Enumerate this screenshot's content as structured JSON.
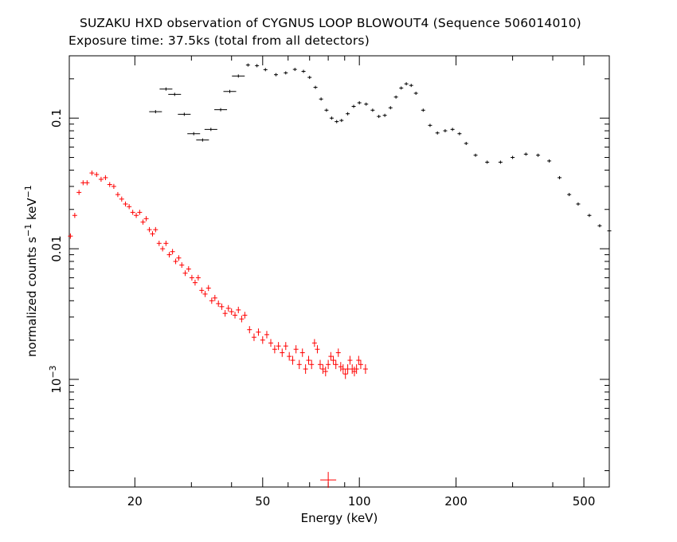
{
  "chart_data": {
    "type": "scatter",
    "title": "SUZAKU HXD observation of CYGNUS LOOP BLOWOUT4 (Sequence 506014010)",
    "subtitle": "Exposure time: 37.5ks (total from all detectors)",
    "xlabel": "Energy (keV)",
    "ylabel_main": "normalized counts s",
    "ylabel_sup1": "−1",
    "ylabel_mid": " keV",
    "ylabel_sup2": "−1",
    "x_scale": "log",
    "y_scale": "log",
    "xlim": [
      12.5,
      600
    ],
    "ylim": [
      0.00015,
      0.3
    ],
    "x_ticks": [
      {
        "value": 20,
        "label": "20"
      },
      {
        "value": 50,
        "label": "50"
      },
      {
        "value": 100,
        "label": "100"
      },
      {
        "value": 200,
        "label": "200"
      },
      {
        "value": 500,
        "label": "500"
      }
    ],
    "y_ticks": [
      {
        "value": 0.1,
        "label": "0.1"
      },
      {
        "value": 0.01,
        "label": "0.01"
      },
      {
        "value": 0.001,
        "label": "10",
        "sup": "−3"
      }
    ],
    "grid": false,
    "legend": "none",
    "series": [
      {
        "color": "#000000",
        "points": [
          [
            23.2,
            0.112
          ],
          [
            25.0,
            0.167
          ],
          [
            26.6,
            0.152
          ],
          [
            28.5,
            0.107
          ],
          [
            30.5,
            0.076
          ],
          [
            32.5,
            0.068
          ],
          [
            34.5,
            0.082
          ],
          [
            37.0,
            0.116
          ],
          [
            39.5,
            0.16
          ],
          [
            42.0,
            0.21
          ],
          [
            45.0,
            0.255
          ],
          [
            48.0,
            0.252
          ],
          [
            51.0,
            0.235
          ],
          [
            55.0,
            0.215
          ],
          [
            59.0,
            0.222
          ],
          [
            63.0,
            0.236
          ],
          [
            67.0,
            0.228
          ],
          [
            70.0,
            0.205
          ],
          [
            73.0,
            0.172
          ],
          [
            76.0,
            0.14
          ],
          [
            79.0,
            0.115
          ],
          [
            82.0,
            0.1
          ],
          [
            85.0,
            0.094
          ],
          [
            88.0,
            0.096
          ],
          [
            92.0,
            0.108
          ],
          [
            96.0,
            0.123
          ],
          [
            100.0,
            0.131
          ],
          [
            105.0,
            0.128
          ],
          [
            110.0,
            0.115
          ],
          [
            115.0,
            0.103
          ],
          [
            120.0,
            0.105
          ],
          [
            125.0,
            0.12
          ],
          [
            130.0,
            0.145
          ],
          [
            135.0,
            0.17
          ],
          [
            140.0,
            0.183
          ],
          [
            145.0,
            0.178
          ],
          [
            150.0,
            0.155
          ],
          [
            158.0,
            0.115
          ],
          [
            166.0,
            0.088
          ],
          [
            175.0,
            0.077
          ],
          [
            185.0,
            0.08
          ],
          [
            195.0,
            0.082
          ],
          [
            205.0,
            0.076
          ],
          [
            215.0,
            0.064
          ],
          [
            230.0,
            0.052
          ],
          [
            250.0,
            0.046
          ],
          [
            275.0,
            0.046
          ],
          [
            300.0,
            0.05
          ],
          [
            330.0,
            0.053
          ],
          [
            360.0,
            0.052
          ],
          [
            390.0,
            0.047
          ],
          [
            420.0,
            0.035
          ],
          [
            450.0,
            0.026
          ],
          [
            480.0,
            0.022
          ],
          [
            520.0,
            0.018
          ],
          [
            560.0,
            0.015
          ],
          [
            600.0,
            0.0137
          ]
        ]
      },
      {
        "color": "#ff0000",
        "points": [
          [
            12.6,
            0.0125
          ],
          [
            13.0,
            0.018
          ],
          [
            13.4,
            0.027
          ],
          [
            13.8,
            0.032
          ],
          [
            14.2,
            0.032
          ],
          [
            14.7,
            0.038
          ],
          [
            15.2,
            0.037
          ],
          [
            15.7,
            0.034
          ],
          [
            16.2,
            0.035
          ],
          [
            16.7,
            0.031
          ],
          [
            17.2,
            0.03
          ],
          [
            17.7,
            0.026
          ],
          [
            18.2,
            0.024
          ],
          [
            18.7,
            0.022
          ],
          [
            19.2,
            0.021
          ],
          [
            19.7,
            0.019
          ],
          [
            20.2,
            0.018
          ],
          [
            20.7,
            0.019
          ],
          [
            21.2,
            0.016
          ],
          [
            21.7,
            0.017
          ],
          [
            22.2,
            0.014
          ],
          [
            22.7,
            0.013
          ],
          [
            23.2,
            0.014
          ],
          [
            23.8,
            0.011
          ],
          [
            24.4,
            0.01
          ],
          [
            25.0,
            0.011
          ],
          [
            25.6,
            0.009
          ],
          [
            26.2,
            0.0095
          ],
          [
            26.8,
            0.008
          ],
          [
            27.4,
            0.0085
          ],
          [
            28.0,
            0.0075
          ],
          [
            28.7,
            0.0065
          ],
          [
            29.4,
            0.007
          ],
          [
            30.1,
            0.006
          ],
          [
            30.8,
            0.0055
          ],
          [
            31.5,
            0.006
          ],
          [
            32.3,
            0.0048
          ],
          [
            33.1,
            0.0045
          ],
          [
            33.9,
            0.005
          ],
          [
            34.7,
            0.004
          ],
          [
            35.5,
            0.0042
          ],
          [
            36.4,
            0.0038
          ],
          [
            37.3,
            0.0036
          ],
          [
            38.2,
            0.0032
          ],
          [
            39.1,
            0.0035
          ],
          [
            40.0,
            0.0033
          ],
          [
            41.0,
            0.0031
          ],
          [
            42.0,
            0.0034
          ],
          [
            43.0,
            0.0029
          ],
          [
            44.0,
            0.0031
          ],
          [
            45.5,
            0.0024
          ],
          [
            47.0,
            0.0021
          ],
          [
            48.5,
            0.0023
          ],
          [
            50.0,
            0.002
          ],
          [
            51.5,
            0.0022
          ],
          [
            53.0,
            0.0019
          ],
          [
            54.5,
            0.0017
          ],
          [
            56.0,
            0.0018
          ],
          [
            57.5,
            0.0016
          ],
          [
            59.0,
            0.0018
          ],
          [
            60.5,
            0.0015
          ],
          [
            62.0,
            0.0014
          ],
          [
            63.5,
            0.0017
          ],
          [
            65.0,
            0.0013
          ],
          [
            66.5,
            0.0016
          ],
          [
            68.0,
            0.0012
          ],
          [
            69.5,
            0.0014
          ],
          [
            71.0,
            0.0013
          ],
          [
            72.5,
            0.0019
          ],
          [
            74.0,
            0.0017
          ],
          [
            75.5,
            0.0013
          ],
          [
            77.0,
            0.0012
          ],
          [
            78.5,
            0.00115
          ],
          [
            80.0,
            0.0013
          ],
          [
            81.5,
            0.0015
          ],
          [
            83.0,
            0.0014
          ],
          [
            84.5,
            0.0013
          ],
          [
            86.0,
            0.0016
          ],
          [
            87.5,
            0.00125
          ],
          [
            89.0,
            0.0012
          ],
          [
            90.5,
            0.0011
          ],
          [
            92.0,
            0.0012
          ],
          [
            93.5,
            0.0014
          ],
          [
            95.0,
            0.0012
          ],
          [
            96.5,
            0.00115
          ],
          [
            98.0,
            0.0012
          ],
          [
            99.5,
            0.0014
          ],
          [
            101.0,
            0.0013
          ],
          [
            104.5,
            0.0012
          ],
          [
            80.0,
            0.00017
          ]
        ]
      }
    ]
  }
}
